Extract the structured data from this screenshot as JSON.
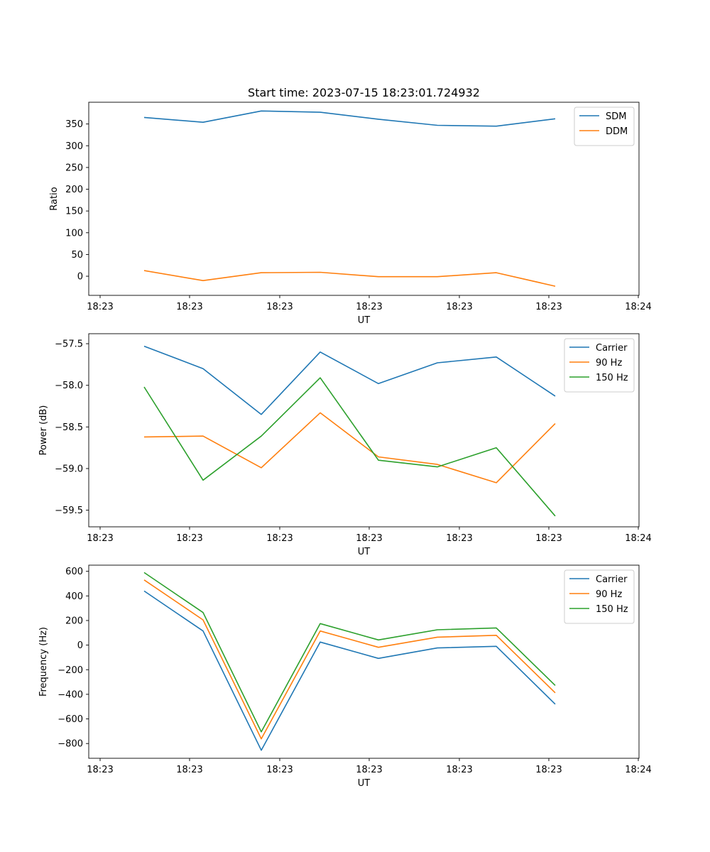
{
  "chart_data": [
    {
      "type": "line",
      "title": "Start time: 2023-07-15 18:23:01.724932",
      "xlabel": "UT",
      "ylabel": "Ratio",
      "xticklabels": [
        "18:23",
        "18:23",
        "18:23",
        "18:23",
        "18:23",
        "18:23",
        "18:24"
      ],
      "ylim": [
        -44,
        400
      ],
      "yticks": [
        0,
        50,
        100,
        150,
        200,
        250,
        300,
        350
      ],
      "legend_position": "top-right",
      "series": [
        {
          "name": "SDM",
          "color": "#1f77b4",
          "values": [
            365,
            354,
            380,
            377,
            361,
            347,
            345,
            362
          ]
        },
        {
          "name": "DDM",
          "color": "#ff7f0e",
          "values": [
            13,
            -10,
            8,
            9,
            -1,
            -1,
            8,
            -23
          ]
        }
      ]
    },
    {
      "type": "line",
      "title": "",
      "xlabel": "UT",
      "ylabel": "Power (dB)",
      "xticklabels": [
        "18:23",
        "18:23",
        "18:23",
        "18:23",
        "18:23",
        "18:23",
        "18:24"
      ],
      "ylim": [
        -59.7,
        -57.38
      ],
      "yticks": [
        -57.5,
        -58.0,
        -58.5,
        -59.0,
        -59.5
      ],
      "yticklabels": [
        "−57.5",
        "−58.0",
        "−58.5",
        "−59.0",
        "−59.5"
      ],
      "legend_position": "top-right",
      "series": [
        {
          "name": "Carrier",
          "color": "#1f77b4",
          "values": [
            -57.53,
            -57.8,
            -58.35,
            -57.6,
            -57.98,
            -57.73,
            -57.66,
            -58.13
          ]
        },
        {
          "name": "90 Hz",
          "color": "#ff7f0e",
          "values": [
            -58.62,
            -58.61,
            -58.99,
            -58.33,
            -58.86,
            -58.95,
            -59.17,
            -58.46
          ]
        },
        {
          "name": "150 Hz",
          "color": "#2ca02c",
          "values": [
            -58.02,
            -59.14,
            -58.61,
            -57.91,
            -58.9,
            -58.98,
            -58.75,
            -59.57
          ]
        }
      ]
    },
    {
      "type": "line",
      "title": "",
      "xlabel": "UT",
      "ylabel": "Frequency (Hz)",
      "xticklabels": [
        "18:23",
        "18:23",
        "18:23",
        "18:23",
        "18:23",
        "18:23",
        "18:24"
      ],
      "ylim": [
        -920,
        650
      ],
      "yticks": [
        600,
        400,
        200,
        0,
        -200,
        -400,
        -600,
        -800
      ],
      "yticklabels": [
        "600",
        "400",
        "200",
        "0",
        "−200",
        "−400",
        "−600",
        "−800"
      ],
      "legend_position": "top-right",
      "series": [
        {
          "name": "Carrier",
          "color": "#1f77b4",
          "values": [
            440,
            115,
            -855,
            25,
            -108,
            -23,
            -10,
            -480
          ]
        },
        {
          "name": "90 Hz",
          "color": "#ff7f0e",
          "values": [
            530,
            205,
            -762,
            115,
            -18,
            65,
            80,
            -388
          ]
        },
        {
          "name": "150 Hz",
          "color": "#2ca02c",
          "values": [
            590,
            265,
            -705,
            175,
            42,
            125,
            140,
            -328
          ]
        }
      ]
    }
  ]
}
